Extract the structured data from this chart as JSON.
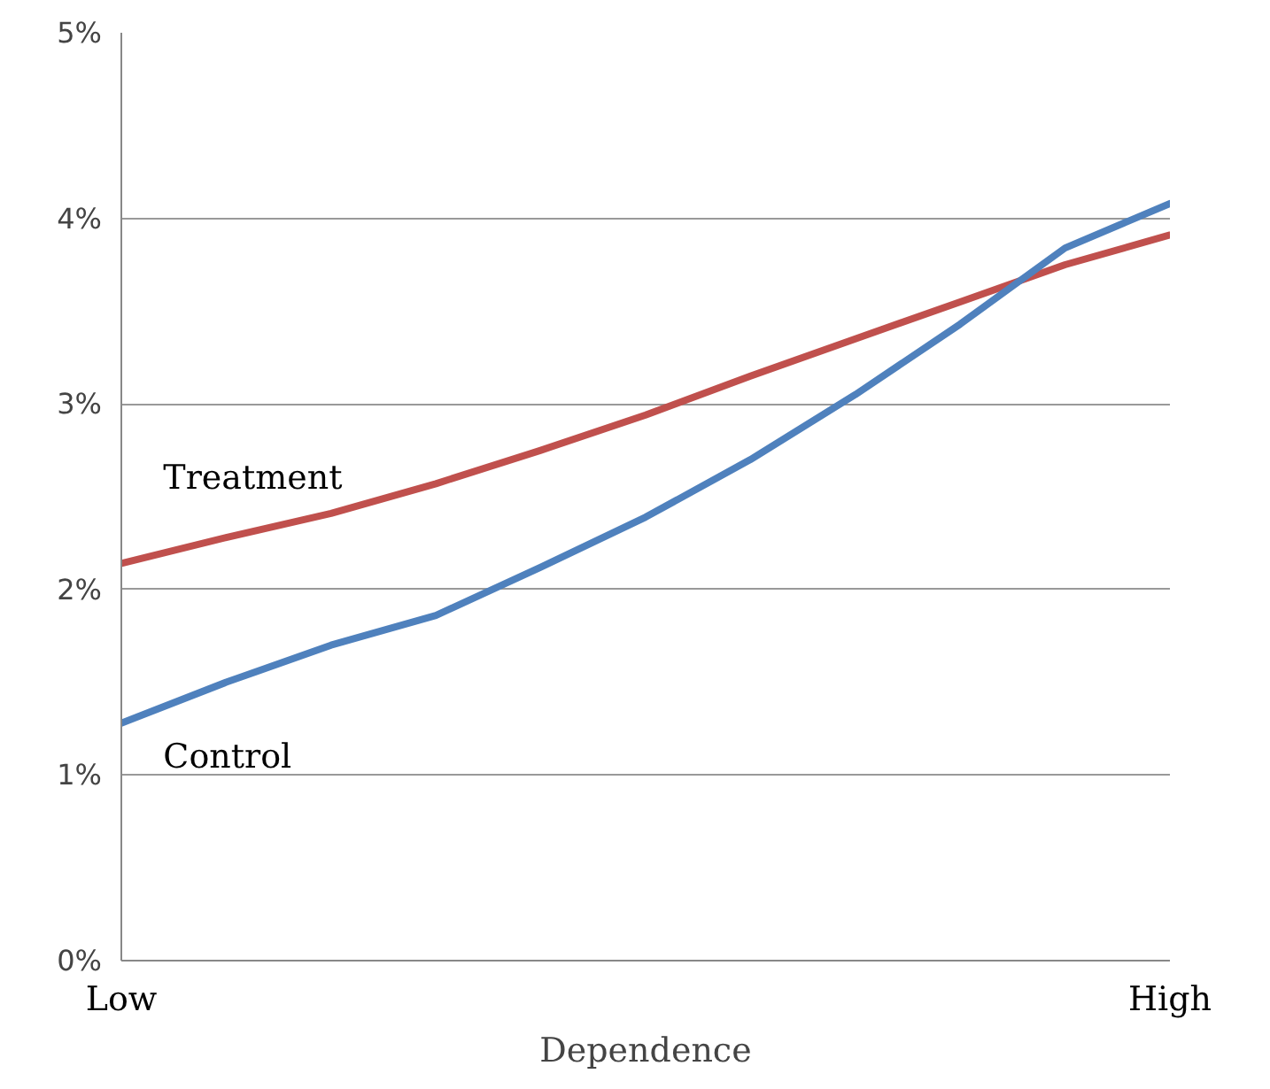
{
  "chart_data": {
    "type": "line",
    "xlabel": "Dependence",
    "categories": [
      "Low",
      null,
      null,
      null,
      null,
      null,
      null,
      null,
      null,
      null,
      "High"
    ],
    "series": [
      {
        "name": "Treatment",
        "color": "#c0504d",
        "values": [
          2.14,
          2.28,
          2.41,
          2.57,
          2.75,
          2.94,
          3.15,
          3.35,
          3.55,
          3.75,
          3.91
        ]
      },
      {
        "name": "Control",
        "color": "#4f81bd",
        "values": [
          1.28,
          1.5,
          1.7,
          1.86,
          2.12,
          2.39,
          2.7,
          3.05,
          3.43,
          3.84,
          4.08
        ]
      }
    ],
    "ylim": [
      0,
      5
    ],
    "yticks": [
      {
        "value": 0,
        "label": "0%"
      },
      {
        "value": 1,
        "label": "1%"
      },
      {
        "value": 2,
        "label": "2%"
      },
      {
        "value": 3,
        "label": "3%"
      },
      {
        "value": 4,
        "label": "4%"
      },
      {
        "value": 5,
        "label": "5%"
      }
    ],
    "grid": "y",
    "marker": "none",
    "line_style": "solid"
  }
}
